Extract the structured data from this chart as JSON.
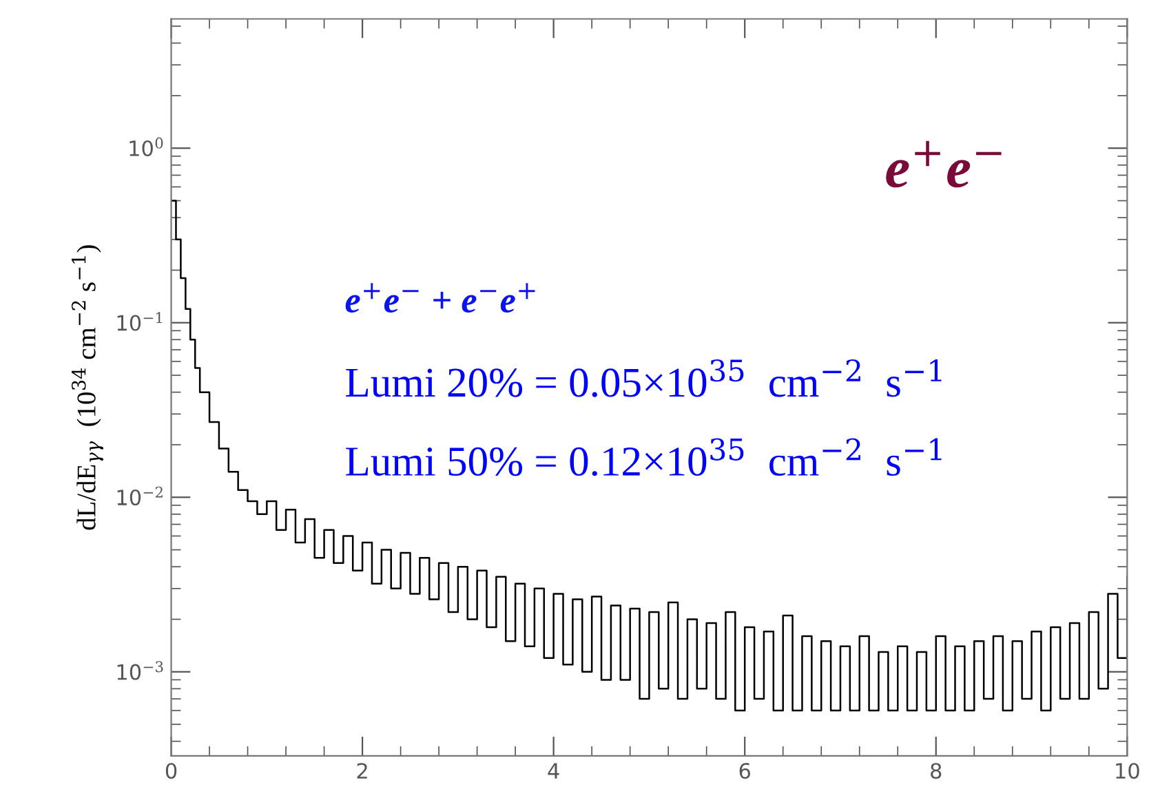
{
  "chart_data": {
    "type": "step",
    "ylabel": "dL/dE$_{γγ}$  (10$^{34}$ cm$^{−2}$ s$^{−1}$)",
    "annotations": [
      "e$^{+}$e$^{−}$",
      "e$^{+}$e$^{−}$ + e$^{−}$e$^{+}$",
      "Lumi 20% = 0.05×10$^{35}$  cm$^{−2}$  s$^{−1}$",
      "Lumi 50% = 0.12×10$^{35}$  cm$^{−2}$  s$^{−1}$"
    ],
    "log": "y",
    "grid": false,
    "legend": false,
    "line_style": "solid",
    "marker": "none",
    "xlim": [
      0,
      10
    ],
    "xticks": [
      0,
      2,
      4,
      6,
      8,
      10
    ],
    "ylim": [
      0.00033,
      5.5
    ],
    "yticks": [
      {
        "value": 1,
        "label": "10$^{0}$"
      },
      {
        "value": 0.1,
        "label": "10$^{−1}$"
      },
      {
        "value": 0.01,
        "label": "10$^{−2}$"
      },
      {
        "value": 0.001,
        "label": "10$^{−3}$"
      }
    ],
    "series": [
      {
        "color": "#000000",
        "x": [
          0,
          0.05,
          0.1,
          0.15,
          0.2,
          0.25,
          0.3,
          0.4,
          0.5,
          0.6,
          0.7,
          0.8,
          0.9,
          1.0,
          1.1,
          1.2,
          1.3,
          1.4,
          1.5,
          1.6,
          1.7,
          1.8,
          1.9,
          2.0,
          2.1,
          2.2,
          2.3,
          2.4,
          2.5,
          2.6,
          2.7,
          2.8,
          2.9,
          3.0,
          3.1,
          3.2,
          3.3,
          3.4,
          3.5,
          3.6,
          3.7,
          3.8,
          3.9,
          4.0,
          4.1,
          4.2,
          4.3,
          4.4,
          4.5,
          4.6,
          4.7,
          4.8,
          4.9,
          5.0,
          5.1,
          5.2,
          5.3,
          5.4,
          5.5,
          5.6,
          5.7,
          5.8,
          5.9,
          6.0,
          6.1,
          6.2,
          6.3,
          6.4,
          6.5,
          6.6,
          6.7,
          6.8,
          6.9,
          7.0,
          7.1,
          7.2,
          7.3,
          7.4,
          7.5,
          7.6,
          7.7,
          7.8,
          7.9,
          8.0,
          8.1,
          8.2,
          8.3,
          8.4,
          8.5,
          8.6,
          8.7,
          8.8,
          8.9,
          9.0,
          9.1,
          9.2,
          9.3,
          9.4,
          9.5,
          9.6,
          9.7,
          9.8,
          9.9,
          10.0
        ],
        "values": [
          0.5,
          0.3,
          0.18,
          0.12,
          0.08,
          0.055,
          0.04,
          0.027,
          0.019,
          0.014,
          0.011,
          0.0095,
          0.008,
          0.0095,
          0.0065,
          0.0085,
          0.0055,
          0.0075,
          0.0045,
          0.0065,
          0.0042,
          0.006,
          0.0038,
          0.0055,
          0.0032,
          0.005,
          0.003,
          0.0048,
          0.0028,
          0.0045,
          0.0026,
          0.0042,
          0.0022,
          0.004,
          0.002,
          0.0038,
          0.0018,
          0.0035,
          0.0015,
          0.0032,
          0.0014,
          0.003,
          0.0012,
          0.0028,
          0.0011,
          0.0026,
          0.001,
          0.0027,
          0.0009,
          0.0024,
          0.0009,
          0.0023,
          0.0007,
          0.0022,
          0.0008,
          0.0025,
          0.0007,
          0.002,
          0.0008,
          0.0019,
          0.0007,
          0.0022,
          0.0006,
          0.0018,
          0.0007,
          0.0017,
          0.0006,
          0.0021,
          0.0006,
          0.0016,
          0.0006,
          0.0015,
          0.0006,
          0.0014,
          0.0006,
          0.0016,
          0.0006,
          0.0013,
          0.0006,
          0.0014,
          0.0006,
          0.0013,
          0.0006,
          0.0016,
          0.0006,
          0.0014,
          0.0006,
          0.0015,
          0.0007,
          0.0016,
          0.0006,
          0.0015,
          0.0007,
          0.0017,
          0.0006,
          0.0018,
          0.0007,
          0.0019,
          0.0007,
          0.0022,
          0.0008,
          0.0028,
          0.0012,
          0.0035
        ]
      }
    ]
  }
}
